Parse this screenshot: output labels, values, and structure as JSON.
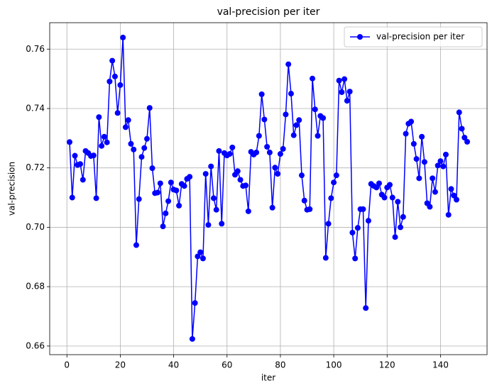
{
  "chart_data": {
    "type": "line",
    "title": "val-precision per iter",
    "xlabel": "iter",
    "ylabel": "val-precision",
    "x": [
      1,
      2,
      3,
      4,
      5,
      6,
      7,
      8,
      9,
      10,
      11,
      12,
      13,
      14,
      15,
      16,
      17,
      18,
      19,
      20,
      21,
      22,
      23,
      24,
      25,
      26,
      27,
      28,
      29,
      30,
      31,
      32,
      33,
      34,
      35,
      36,
      37,
      38,
      39,
      40,
      41,
      42,
      43,
      44,
      45,
      46,
      47,
      48,
      49,
      50,
      51,
      52,
      53,
      54,
      55,
      56,
      57,
      58,
      59,
      60,
      61,
      62,
      63,
      64,
      65,
      66,
      67,
      68,
      69,
      70,
      71,
      72,
      73,
      74,
      75,
      76,
      77,
      78,
      79,
      80,
      81,
      82,
      83,
      84,
      85,
      86,
      87,
      88,
      89,
      90,
      91,
      92,
      93,
      94,
      95,
      96,
      97,
      98,
      99,
      100,
      101,
      102,
      103,
      104,
      105,
      106,
      107,
      108,
      109,
      110,
      111,
      112,
      113,
      114,
      115,
      116,
      117,
      118,
      119,
      120,
      121,
      122,
      123,
      124,
      125,
      126,
      127,
      128,
      129,
      130,
      131,
      132,
      133,
      134,
      135,
      136,
      137,
      138,
      139,
      140,
      141,
      142,
      143,
      144,
      145,
      146,
      147,
      148,
      149,
      150
    ],
    "series": [
      {
        "name": "val-precision per iter",
        "color": "#0000ff",
        "values": [
          0.7287,
          0.71,
          0.7241,
          0.721,
          0.7213,
          0.716,
          0.7257,
          0.725,
          0.724,
          0.7242,
          0.7098,
          0.7371,
          0.7274,
          0.7305,
          0.7286,
          0.7491,
          0.7561,
          0.7508,
          0.7385,
          0.7479,
          0.7639,
          0.7337,
          0.7361,
          0.7281,
          0.7262,
          0.694,
          0.7095,
          0.7237,
          0.7267,
          0.7298,
          0.7402,
          0.7199,
          0.7115,
          0.7117,
          0.7148,
          0.7003,
          0.7047,
          0.7088,
          0.7151,
          0.7127,
          0.7124,
          0.7073,
          0.7146,
          0.7139,
          0.7163,
          0.717,
          0.6624,
          0.6745,
          0.6902,
          0.6916,
          0.6895,
          0.718,
          0.7008,
          0.7205,
          0.7098,
          0.7059,
          0.7257,
          0.7012,
          0.725,
          0.7242,
          0.7247,
          0.7269,
          0.7177,
          0.7189,
          0.716,
          0.7139,
          0.7141,
          0.7054,
          0.7254,
          0.7245,
          0.7252,
          0.7308,
          0.7448,
          0.7363,
          0.7271,
          0.7252,
          0.7066,
          0.7201,
          0.718,
          0.7247,
          0.7264,
          0.738,
          0.7549,
          0.745,
          0.731,
          0.7344,
          0.7361,
          0.7175,
          0.709,
          0.7059,
          0.7061,
          0.7501,
          0.7397,
          0.7308,
          0.7375,
          0.7368,
          0.6897,
          0.7012,
          0.7098,
          0.7151,
          0.7175,
          0.7494,
          0.7455,
          0.7499,
          0.7426,
          0.7457,
          0.6982,
          0.6895,
          0.6998,
          0.7061,
          0.7061,
          0.6728,
          0.7022,
          0.7146,
          0.7139,
          0.7134,
          0.7148,
          0.711,
          0.71,
          0.7134,
          0.7143,
          0.71,
          0.6967,
          0.7086,
          0.7,
          0.7035,
          0.7315,
          0.7349,
          0.7356,
          0.7281,
          0.723,
          0.7165,
          0.7305,
          0.722,
          0.7081,
          0.7069,
          0.7165,
          0.7119,
          0.7208,
          0.7223,
          0.7205,
          0.7245,
          0.7042,
          0.7129,
          0.7107,
          0.7093,
          0.7387,
          0.7332,
          0.7302,
          0.7288
        ]
      }
    ],
    "xlim": [
      -6.45,
      157.45
    ],
    "xticks": [
      0,
      20,
      40,
      60,
      80,
      100,
      120,
      140
    ],
    "ylim": [
      0.6571,
      0.7689
    ],
    "yticks": [
      0.66,
      0.68,
      {
        "value": 0.7,
        "label": "0.70"
      },
      0.72,
      0.74,
      0.76
    ],
    "grid": true,
    "legend": "upper right",
    "marker": "circle"
  }
}
